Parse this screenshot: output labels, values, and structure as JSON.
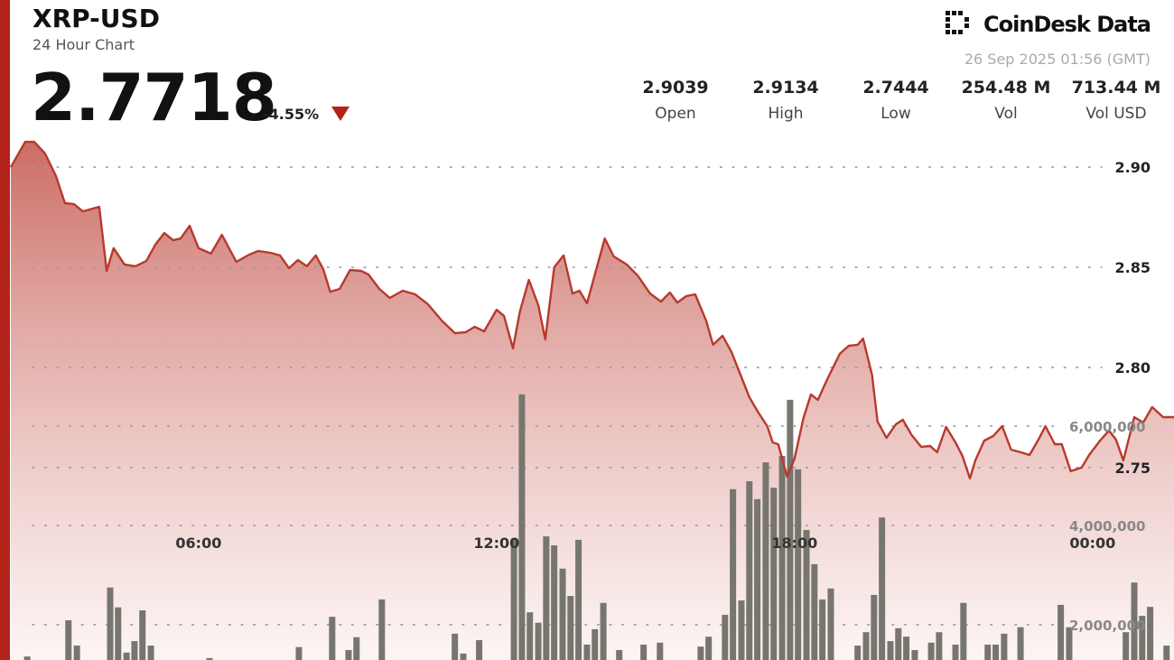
{
  "header": {
    "price": "2.7718",
    "change": "-4.55%",
    "brand": "CoinDesk Data",
    "timestamp": "26 Sep 2025 01:56 (GMT)",
    "stats": [
      {
        "value": "2.9039",
        "label": "Open"
      },
      {
        "value": "2.9134",
        "label": "High"
      },
      {
        "value": "2.7444",
        "label": "Low"
      },
      {
        "value": "254.48 M",
        "label": "Vol"
      },
      {
        "value": "713.44 M",
        "label": "Vol USD"
      }
    ]
  },
  "chart_data": {
    "type": "line",
    "title": "XRP-USD",
    "subtitle": "24 Hour Chart",
    "grid": true,
    "xlim": [
      2.22,
      25.64
    ],
    "xticks": [
      {
        "value": 6,
        "label": "06:00"
      },
      {
        "value": 12,
        "label": "12:00"
      },
      {
        "value": 18,
        "label": "18:00"
      },
      {
        "value": 24,
        "label": "00:00"
      }
    ],
    "ylim": [
      2.654,
      2.9203
    ],
    "yticks": [
      {
        "value": 2.75,
        "label": "2.75"
      },
      {
        "value": 2.8,
        "label": "2.80"
      },
      {
        "value": 2.85,
        "label": "2.85"
      },
      {
        "value": 2.9,
        "label": "2.90"
      }
    ],
    "y2lim": [
      1290000,
      12036000
    ],
    "y2ticks": [
      {
        "value": 2000000,
        "label": "2,000,000"
      },
      {
        "value": 4000000,
        "label": "4,000,000"
      },
      {
        "value": 6000000,
        "label": "6,000,000"
      }
    ],
    "series": [
      {
        "type": "bar",
        "axis": "y2",
        "color": "#76766e",
        "x": [
          2.55,
          3.38,
          3.55,
          4.22,
          4.38,
          4.55,
          4.71,
          4.87,
          5.04,
          6.22,
          8.02,
          8.69,
          9.02,
          9.18,
          9.69,
          11.16,
          11.33,
          11.65,
          12.35,
          12.51,
          12.67,
          12.84,
          13.0,
          13.16,
          13.33,
          13.49,
          13.65,
          13.82,
          13.98,
          14.15,
          14.47,
          14.96,
          15.29,
          16.11,
          16.27,
          16.6,
          16.76,
          16.93,
          17.09,
          17.25,
          17.42,
          17.58,
          17.75,
          17.91,
          18.07,
          18.24,
          18.4,
          18.56,
          18.73,
          19.27,
          19.44,
          19.6,
          19.76,
          19.93,
          20.09,
          20.25,
          20.42,
          20.75,
          20.91,
          21.24,
          21.4,
          21.89,
          22.05,
          22.22,
          22.55,
          23.36,
          23.53,
          24.67,
          24.84,
          25.0,
          25.16,
          25.49
        ],
        "values": [
          1360000,
          2090000,
          1580000,
          2750000,
          2350000,
          1440000,
          1670000,
          2290000,
          1580000,
          1330000,
          1550000,
          2160000,
          1490000,
          1750000,
          2510000,
          1820000,
          1420000,
          1690000,
          3730000,
          6640000,
          2250000,
          2040000,
          3780000,
          3600000,
          3130000,
          2580000,
          3710000,
          1600000,
          1910000,
          2440000,
          1490000,
          1600000,
          1640000,
          1560000,
          1760000,
          2200000,
          4730000,
          2490000,
          4890000,
          4530000,
          5270000,
          4760000,
          5400000,
          6530000,
          5130000,
          3910000,
          3220000,
          2510000,
          2730000,
          1580000,
          1850000,
          2600000,
          4160000,
          1670000,
          1930000,
          1760000,
          1490000,
          1640000,
          1850000,
          1600000,
          2440000,
          1600000,
          1600000,
          1820000,
          1950000,
          2400000,
          1950000,
          1850000,
          2850000,
          2180000,
          2360000,
          1580000
        ]
      },
      {
        "type": "line",
        "color": "#b8392d",
        "x": [
          2.22,
          2.51,
          2.69,
          2.91,
          3.13,
          3.31,
          3.49,
          3.67,
          4.0,
          4.15,
          4.29,
          4.51,
          4.73,
          4.95,
          5.13,
          5.31,
          5.49,
          5.64,
          5.82,
          6.0,
          6.25,
          6.47,
          6.76,
          7.02,
          7.2,
          7.45,
          7.64,
          7.82,
          8.0,
          8.18,
          8.36,
          8.51,
          8.65,
          8.84,
          9.05,
          9.27,
          9.42,
          9.64,
          9.85,
          10.11,
          10.36,
          10.62,
          10.91,
          11.16,
          11.38,
          11.56,
          11.75,
          12.0,
          12.15,
          12.33,
          12.47,
          12.65,
          12.84,
          12.98,
          13.16,
          13.35,
          13.53,
          13.67,
          13.82,
          14.0,
          14.18,
          14.36,
          14.62,
          14.84,
          15.09,
          15.31,
          15.49,
          15.64,
          15.82,
          16.0,
          16.22,
          16.36,
          16.55,
          16.73,
          16.91,
          17.09,
          17.27,
          17.45,
          17.56,
          17.67,
          17.85,
          18.0,
          18.18,
          18.33,
          18.47,
          18.65,
          18.91,
          19.09,
          19.27,
          19.38,
          19.56,
          19.67,
          19.85,
          20.04,
          20.18,
          20.36,
          20.55,
          20.73,
          20.87,
          21.05,
          21.24,
          21.38,
          21.53,
          21.64,
          21.82,
          22.0,
          22.18,
          22.36,
          22.55,
          22.73,
          22.91,
          23.05,
          23.24,
          23.38,
          23.56,
          23.78,
          23.93,
          24.15,
          24.33,
          24.47,
          24.62,
          24.84,
          25.02,
          25.2,
          25.42,
          25.64
        ],
        "values": [
          2.9,
          2.9126,
          2.9126,
          2.9068,
          2.8955,
          2.882,
          2.8815,
          2.8779,
          2.8802,
          2.8482,
          2.8595,
          2.8514,
          2.8505,
          2.8532,
          2.8613,
          2.8671,
          2.8635,
          2.8644,
          2.8707,
          2.8595,
          2.8568,
          2.8662,
          2.8527,
          2.8563,
          2.8581,
          2.8572,
          2.8559,
          2.8495,
          2.8536,
          2.8505,
          2.8559,
          2.8491,
          2.8378,
          2.8392,
          2.8486,
          2.8482,
          2.8464,
          2.8392,
          2.8347,
          2.8383,
          2.8365,
          2.8315,
          2.823,
          2.8171,
          2.8176,
          2.8203,
          2.818,
          2.8288,
          2.8257,
          2.8095,
          2.8279,
          2.8437,
          2.8311,
          2.814,
          2.85,
          2.8559,
          2.8369,
          2.8383,
          2.832,
          2.8482,
          2.8644,
          2.8554,
          2.8514,
          2.8459,
          2.8369,
          2.8329,
          2.8374,
          2.8324,
          2.8356,
          2.8365,
          2.8234,
          2.8113,
          2.8158,
          2.8077,
          2.7964,
          2.7851,
          2.7775,
          2.7707,
          2.7626,
          2.7617,
          2.7455,
          2.7545,
          2.7748,
          2.7865,
          2.7838,
          2.7937,
          2.8068,
          2.8108,
          2.8113,
          2.8144,
          2.7964,
          2.773,
          2.7649,
          2.7716,
          2.7739,
          2.7662,
          2.7604,
          2.7608,
          2.7577,
          2.7703,
          2.7626,
          2.7559,
          2.7446,
          2.7536,
          2.7635,
          2.7658,
          2.7707,
          2.759,
          2.7577,
          2.7563,
          2.764,
          2.7707,
          2.7617,
          2.7617,
          2.7482,
          2.75,
          2.7563,
          2.7635,
          2.7685,
          2.764,
          2.7536,
          2.7752,
          2.7725,
          2.7802,
          2.7752,
          2.7752
        ]
      }
    ]
  }
}
